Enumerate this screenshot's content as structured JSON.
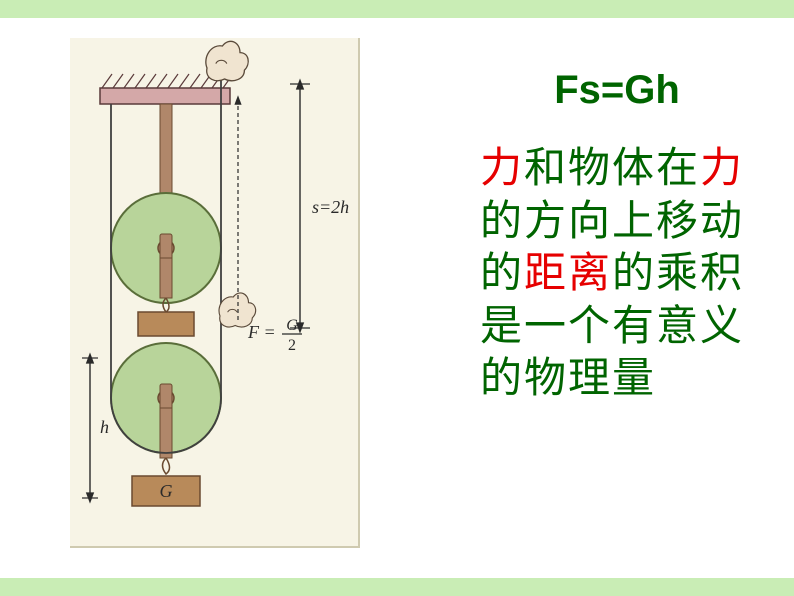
{
  "colors": {
    "bar": "#c9edb5",
    "diagram_bg": "#f7f4e6",
    "diagram_border": "#cfcab0",
    "ceiling_fill": "#d4a8a8",
    "ceiling_stroke": "#5a3a3a",
    "pulley_fill": "#b8d49a",
    "pulley_stroke": "#5a6e3a",
    "axle_fill": "#b0876a",
    "axle_stroke": "#6a4a30",
    "weight_fill": "#b88a5a",
    "weight_stroke": "#6a4a30",
    "rope": "#404040",
    "text": "#2a2a2a",
    "hand_fill": "#f0e4d0",
    "hand_stroke": "#5a4a3a",
    "red": "#e60000",
    "green": "#006400"
  },
  "formula": "Fs=Gh",
  "labels": {
    "s": "s=2h",
    "F_lhs": "F = ",
    "F_num": "G",
    "F_den": "2",
    "h": "h",
    "G": "G"
  },
  "text_parts": {
    "p1": "力",
    "p2": "和物体在",
    "p3": "力",
    "p4": "的方向上移动的",
    "p5": "距离",
    "p6": "的乘积是一个有意义的物理量"
  }
}
